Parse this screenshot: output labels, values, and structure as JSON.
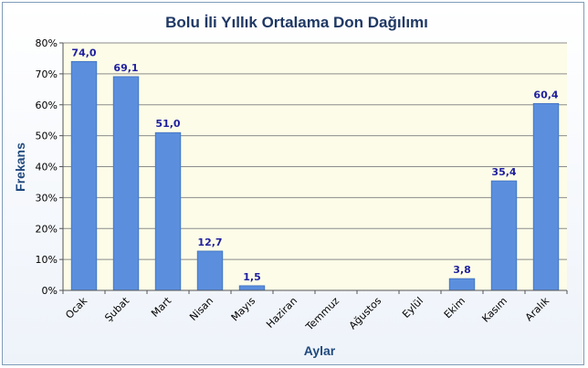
{
  "colors": {
    "bar": "#5b8fde",
    "bar_stroke": "#3d6fbf",
    "plot_bg": "#fcfce8",
    "grid": "#8c8c8c",
    "data_label": "#1f1f9f",
    "title": "#1f3864",
    "axis_title": "#1f497d"
  },
  "chart_data": {
    "type": "bar",
    "title": "Bolu İli Yıllık Ortalama Don Dağılımı",
    "xlabel": "Aylar",
    "ylabel": "Frekans",
    "categories": [
      "Ocak",
      "Şubat",
      "Mart",
      "Nisan",
      "Mayıs",
      "Haziran",
      "Temmuz",
      "Ağustos",
      "Eylül",
      "Ekim",
      "Kasım",
      "Aralık"
    ],
    "values": [
      74.0,
      69.1,
      51.0,
      12.7,
      1.5,
      0,
      0,
      0,
      0,
      3.8,
      35.4,
      60.4
    ],
    "data_labels": [
      "74,0",
      "69,1",
      "51,0",
      "12,7",
      "1,5",
      "",
      "",
      "",
      "",
      "3,8",
      "35,4",
      "60,4"
    ],
    "yticks": [
      "0%",
      "10%",
      "20%",
      "30%",
      "40%",
      "50%",
      "60%",
      "70%",
      "80%"
    ],
    "ylim": [
      0,
      80
    ],
    "grid": true,
    "legend": "none"
  }
}
